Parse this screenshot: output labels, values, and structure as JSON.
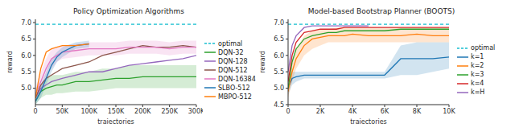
{
  "chart_data": [
    {
      "type": "line",
      "title": "Policy Optimization Algorithms",
      "x_label": "trajectories",
      "y_label": "reward",
      "x": [
        0,
        10000,
        20000,
        30000,
        40000,
        50000,
        75000,
        100000,
        125000,
        150000,
        175000,
        200000,
        225000,
        250000,
        275000,
        300000
      ],
      "xlim": [
        0,
        300000
      ],
      "xticks": [
        {
          "value": 0,
          "label": "0"
        },
        {
          "value": 50000,
          "label": "50K"
        },
        {
          "value": 100000,
          "label": "100K"
        },
        {
          "value": 150000,
          "label": "150K"
        },
        {
          "value": 200000,
          "label": "200K"
        },
        {
          "value": 250000,
          "label": "250K"
        },
        {
          "value": 300000,
          "label": "300K"
        }
      ],
      "ylim": [
        4.5,
        7.1
      ],
      "yticks": [
        {
          "value": 5,
          "label": "5.0"
        },
        5.5,
        {
          "value": 6,
          "label": "6.0"
        },
        6.5,
        {
          "value": 7,
          "label": "7.0"
        }
      ],
      "grid": false,
      "legend": "right",
      "series": [
        {
          "name": "optimal",
          "color": "#17becf",
          "line_style": "dashed",
          "values": [
            6.95,
            6.95,
            6.95,
            6.95,
            6.95,
            6.95,
            6.95,
            6.95,
            6.95,
            6.95,
            6.95,
            6.95,
            6.95,
            6.95,
            6.95,
            6.95
          ]
        },
        {
          "name": "DQN-32",
          "color": "#2ca02c",
          "values": [
            4.6,
            4.9,
            5.0,
            5.05,
            5.1,
            5.1,
            5.2,
            5.2,
            5.25,
            5.3,
            5.3,
            5.35,
            5.35,
            5.35,
            5.35,
            5.35
          ],
          "lower": [
            4.5,
            4.7,
            4.8,
            4.8,
            4.85,
            4.85,
            4.9,
            4.9,
            4.95,
            5.0,
            5.0,
            5.0,
            5.0,
            5.0,
            5.0,
            5.0
          ],
          "upper": [
            4.7,
            5.1,
            5.3,
            5.4,
            5.4,
            5.4,
            5.5,
            5.5,
            5.6,
            5.6,
            5.7,
            5.7,
            5.7,
            5.7,
            5.7,
            5.7
          ]
        },
        {
          "name": "DQN-128",
          "color": "#9467bd",
          "values": [
            4.7,
            5.0,
            5.1,
            5.2,
            5.25,
            5.3,
            5.4,
            5.5,
            5.5,
            5.6,
            5.7,
            5.75,
            5.8,
            5.85,
            5.9,
            6.0
          ]
        },
        {
          "name": "DQN-512",
          "color": "#8c564b",
          "values": [
            4.7,
            5.1,
            5.3,
            5.4,
            5.5,
            5.6,
            5.7,
            5.8,
            6.0,
            6.1,
            6.2,
            6.3,
            6.25,
            6.25,
            6.3,
            6.25
          ]
        },
        {
          "name": "DQN-16384",
          "color": "#e377c2",
          "values": [
            4.8,
            5.2,
            5.6,
            5.9,
            6.0,
            6.1,
            6.15,
            6.2,
            6.2,
            6.2,
            6.25,
            6.25,
            6.25,
            6.2,
            6.25,
            6.25
          ],
          "lower": [
            4.6,
            4.9,
            5.3,
            5.6,
            5.8,
            5.9,
            5.95,
            6.0,
            6.0,
            6.0,
            6.05,
            6.05,
            6.05,
            6.0,
            6.05,
            6.05
          ],
          "upper": [
            5.0,
            5.5,
            5.9,
            6.2,
            6.25,
            6.3,
            6.35,
            6.4,
            6.4,
            6.4,
            6.45,
            6.45,
            6.45,
            6.4,
            6.45,
            6.45
          ]
        },
        {
          "name": "SLBO-512",
          "color": "#1f77b4",
          "values": [
            4.6,
            4.9,
            5.3,
            5.7,
            5.95,
            6.1,
            6.3,
            6.35,
            null,
            null,
            null,
            null,
            null,
            null,
            null,
            null
          ],
          "lower": [
            4.5,
            4.7,
            5.1,
            5.5,
            5.8,
            5.95,
            6.2,
            6.25,
            null,
            null,
            null,
            null,
            null,
            null,
            null,
            null
          ],
          "upper": [
            4.7,
            5.1,
            5.5,
            5.9,
            6.1,
            6.25,
            6.4,
            6.45,
            null,
            null,
            null,
            null,
            null,
            null,
            null,
            null
          ]
        },
        {
          "name": "MBPO-512",
          "color": "#ff7f0e",
          "values": [
            4.7,
            5.6,
            6.1,
            6.2,
            6.25,
            6.3,
            6.3,
            6.35,
            null,
            null,
            null,
            null,
            null,
            null,
            null,
            null
          ]
        }
      ]
    },
    {
      "type": "line",
      "title": "Model-based Bootstrap Planner (BOOTS)",
      "x_label": "trajectories",
      "y_label": "reward",
      "x": [
        0,
        250,
        500,
        1000,
        1500,
        2000,
        2500,
        3000,
        3500,
        4000,
        5000,
        6000,
        7000,
        8000,
        9000,
        10000
      ],
      "xlim": [
        0,
        10000
      ],
      "xticks": [
        {
          "value": 0,
          "label": "0"
        },
        {
          "value": 2000,
          "label": "2K"
        },
        {
          "value": 4000,
          "label": "4K"
        },
        {
          "value": 6000,
          "label": "6K"
        },
        {
          "value": 8000,
          "label": "8K"
        },
        {
          "value": 10000,
          "label": "10K"
        }
      ],
      "ylim": [
        4.5,
        7.1
      ],
      "yticks": [
        4.5,
        {
          "value": 5,
          "label": "5.0"
        },
        5.5,
        {
          "value": 6,
          "label": "6.0"
        },
        6.5,
        {
          "value": 7,
          "label": "7.0"
        }
      ],
      "grid": false,
      "legend": "right",
      "series": [
        {
          "name": "optimal",
          "color": "#17becf",
          "line_style": "dashed",
          "values": [
            6.95,
            6.95,
            6.95,
            6.95,
            6.95,
            6.95,
            6.95,
            6.95,
            6.95,
            6.95,
            6.95,
            6.95,
            6.95,
            6.95,
            6.95,
            6.95
          ]
        },
        {
          "name": "k=1",
          "color": "#1f77b4",
          "values": [
            5.0,
            5.3,
            5.35,
            5.4,
            5.4,
            5.4,
            5.4,
            5.4,
            5.4,
            5.4,
            5.4,
            5.4,
            5.9,
            5.9,
            5.9,
            5.95
          ],
          "lower": [
            4.8,
            5.1,
            5.2,
            5.3,
            5.3,
            5.3,
            5.3,
            5.3,
            5.3,
            5.3,
            5.3,
            5.3,
            5.4,
            5.4,
            5.5,
            5.6
          ],
          "upper": [
            5.3,
            5.5,
            5.5,
            5.5,
            5.5,
            5.5,
            5.5,
            5.5,
            5.5,
            5.5,
            5.5,
            5.5,
            6.3,
            6.4,
            6.4,
            6.4
          ]
        },
        {
          "name": "k=2",
          "color": "#ff7f0e",
          "values": [
            4.9,
            5.5,
            5.9,
            6.3,
            6.5,
            6.55,
            6.6,
            6.6,
            6.6,
            6.65,
            6.6,
            6.6,
            6.6,
            6.65,
            6.6,
            6.6
          ],
          "lower": [
            4.7,
            5.2,
            5.6,
            6.0,
            6.2,
            6.3,
            6.4,
            6.4,
            6.4,
            6.4,
            6.4,
            6.4,
            6.4,
            6.4,
            6.4,
            6.4
          ],
          "upper": [
            5.1,
            5.8,
            6.2,
            6.6,
            6.75,
            6.8,
            6.8,
            6.85,
            6.85,
            6.85,
            6.85,
            6.85,
            6.85,
            6.85,
            6.85,
            6.85
          ]
        },
        {
          "name": "k=3",
          "color": "#2ca02c",
          "values": [
            5.0,
            5.8,
            6.2,
            6.5,
            6.6,
            6.65,
            6.7,
            6.7,
            6.75,
            6.75,
            6.75,
            6.75,
            6.8,
            6.8,
            6.8,
            6.8
          ]
        },
        {
          "name": "k=4",
          "color": "#d62728",
          "values": [
            5.2,
            6.0,
            6.4,
            6.7,
            6.75,
            6.8,
            6.8,
            6.8,
            6.85,
            6.85,
            6.85,
            6.85,
            6.85,
            6.85,
            6.85,
            6.85
          ]
        },
        {
          "name": "k=H",
          "color": "#9467bd",
          "values": [
            5.5,
            6.3,
            6.6,
            6.85,
            6.9,
            6.9,
            6.9,
            6.9,
            6.9,
            6.9,
            6.9,
            null,
            null,
            null,
            null,
            null
          ]
        }
      ]
    }
  ]
}
